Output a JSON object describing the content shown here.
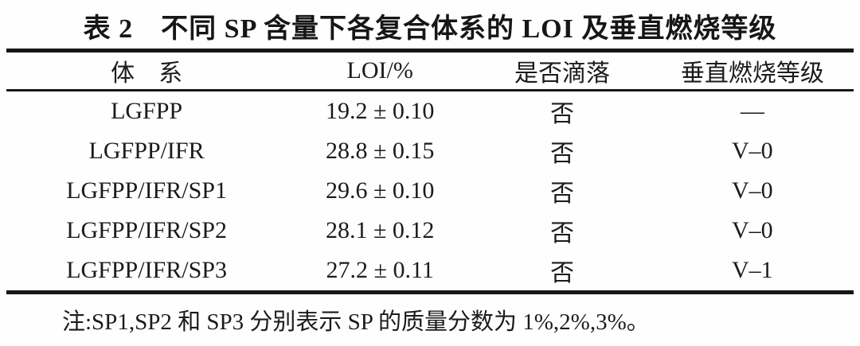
{
  "title": "表 2　不同 SP 含量下各复合体系的 LOI 及垂直燃烧等级",
  "table": {
    "columns": [
      "体　系",
      "LOI/%",
      "是否滴落",
      "垂直燃烧等级"
    ],
    "rows": [
      [
        "LGFPP",
        "19.2 ± 0.10",
        "否",
        "—"
      ],
      [
        "LGFPP/IFR",
        "28.8 ± 0.15",
        "否",
        "V–0"
      ],
      [
        "LGFPP/IFR/SP1",
        "29.6 ± 0.10",
        "否",
        "V–0"
      ],
      [
        "LGFPP/IFR/SP2",
        "28.1 ± 0.12",
        "否",
        "V–0"
      ],
      [
        "LGFPP/IFR/SP3",
        "27.2 ± 0.11",
        "否",
        "V–1"
      ]
    ]
  },
  "note": "注:SP1,SP2 和 SP3 分别表示 SP 的质量分数为 1%,2%,3%。",
  "colors": {
    "text": "#1b1b1b",
    "rule": "#161616",
    "background": "#fefefe"
  }
}
